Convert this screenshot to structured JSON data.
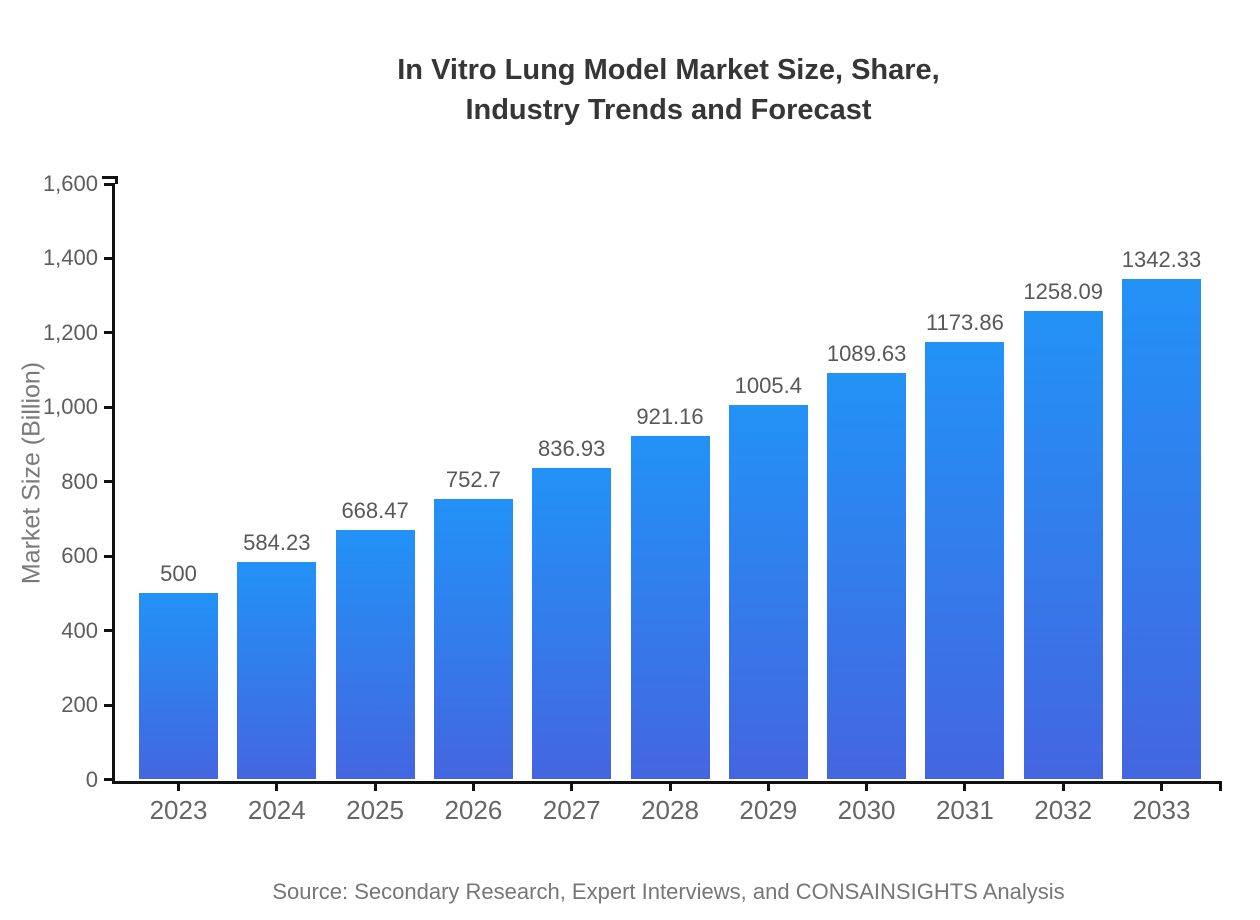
{
  "title": {
    "line1": "In Vitro Lung Model Market Size, Share,",
    "line2": "Industry Trends and Forecast"
  },
  "source_note": "Source: Secondary Research, Expert Interviews, and CONSAINSIGHTS Analysis",
  "chart_data": {
    "type": "bar",
    "title": "In Vitro Lung Model Market Size, Share, Industry Trends and Forecast",
    "xlabel": "",
    "ylabel": "Market Size (Billion)",
    "categories": [
      "2023",
      "2024",
      "2025",
      "2026",
      "2027",
      "2028",
      "2029",
      "2030",
      "2031",
      "2032",
      "2033"
    ],
    "values": [
      500,
      584.23,
      668.47,
      752.7,
      836.93,
      921.16,
      1005.4,
      1089.63,
      1173.86,
      1258.09,
      1342.33
    ],
    "value_labels": [
      "500",
      "584.23",
      "668.47",
      "752.7",
      "836.93",
      "921.16",
      "1005.4",
      "1089.63",
      "1173.86",
      "1258.09",
      "1342.33"
    ],
    "ylim": [
      0,
      1600
    ],
    "ytick_step": 200,
    "ytick_labels": [
      "0",
      "200",
      "400",
      "600",
      "800",
      "1,000",
      "1,200",
      "1,400",
      "1,600"
    ],
    "grid": false,
    "legend": "none"
  },
  "colors": {
    "bar_gradient_top": "#2292F7",
    "bar_gradient_bottom": "#4466E0",
    "axis": "#111111",
    "tick_label": "#5d5d5d",
    "value_label": "#585858",
    "title": "#363636",
    "y_axis_title": "#7a7a7a",
    "source": "#767676",
    "background": "#ffffff"
  }
}
